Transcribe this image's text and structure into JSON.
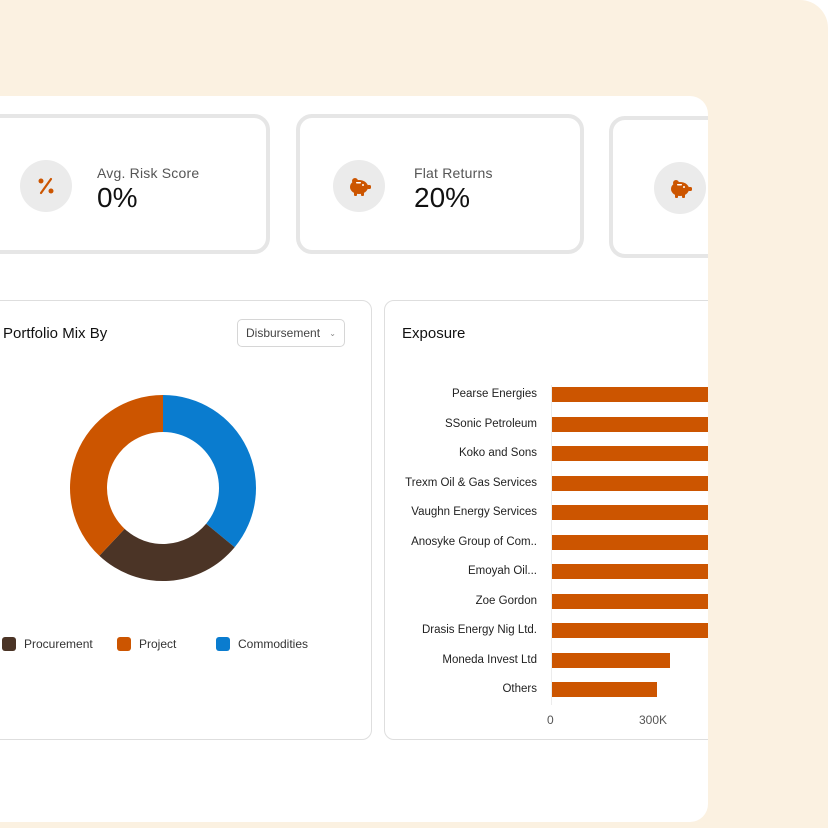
{
  "stats": [
    {
      "label": "Avg. Risk Score",
      "value": "0%",
      "icon": "percent-icon"
    },
    {
      "label": "Flat Returns",
      "value": "20%",
      "icon": "piggy-bank-icon"
    },
    {
      "label": "",
      "value": "",
      "icon": "piggy-bank-icon"
    }
  ],
  "portfolio": {
    "title": "Portfolio Mix By",
    "dropdown_value": "Disbursement",
    "legend": [
      {
        "label": "Procurement",
        "color": "#4b3426"
      },
      {
        "label": "Project",
        "color": "#cc5500"
      },
      {
        "label": "Commodities",
        "color": "#0a7ccf"
      }
    ]
  },
  "exposure": {
    "title": "Exposure",
    "ticks": [
      "0",
      "300K"
    ]
  },
  "chart_data": [
    {
      "type": "pie",
      "title": "Portfolio Mix By",
      "categories": [
        "Commodities",
        "Procurement",
        "Project"
      ],
      "values": [
        36,
        26,
        38
      ],
      "colors": [
        "#0a7ccf",
        "#4b3426",
        "#cc5500"
      ]
    },
    {
      "type": "bar",
      "orientation": "horizontal",
      "title": "Exposure",
      "categories": [
        "Pearse Energies",
        "SSonic Petroleum",
        "Koko and Sons",
        "Trexm Oil & Gas Services",
        "Vaughn Energy Services",
        "Anosyke Group of Com..",
        "Emoyah Oil...",
        "Zoe Gordon",
        "Drasis Energy Nig Ltd.",
        "Moneda Invest Ltd",
        "Others"
      ],
      "values": [
        400,
        400,
        400,
        400,
        400,
        400,
        400,
        400,
        400,
        265,
        235
      ],
      "xlim": [
        0,
        400
      ],
      "xticks": [
        "0",
        "300K"
      ],
      "color": "#cc5500"
    }
  ]
}
